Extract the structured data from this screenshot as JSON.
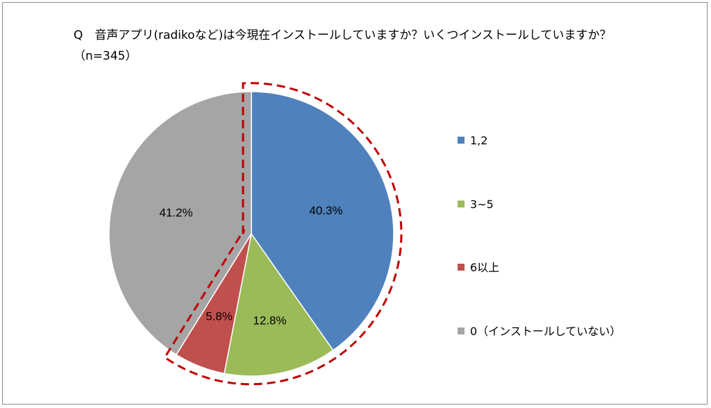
{
  "chart_data": {
    "type": "pie",
    "title": "Q　音声アプリ(radikoなど)は今現在インストールしていますか？いくつインストールしていますか？（n=345）",
    "categories": [
      "1,2",
      "3~5",
      "6以上",
      "0（インストールしていない）"
    ],
    "values": [
      40.3,
      12.8,
      5.8,
      41.2
    ],
    "data_labels": [
      "40.3%",
      "12.8%",
      "5.8%",
      "41.2%"
    ],
    "colors": [
      "#4f81bd",
      "#9bbb59",
      "#c0504d",
      "#a5a5a5"
    ],
    "highlight": {
      "covers": [
        "1,2",
        "3~5",
        "6以上"
      ],
      "style": "dashed",
      "color": "#c00000"
    },
    "legend_position": "right"
  }
}
